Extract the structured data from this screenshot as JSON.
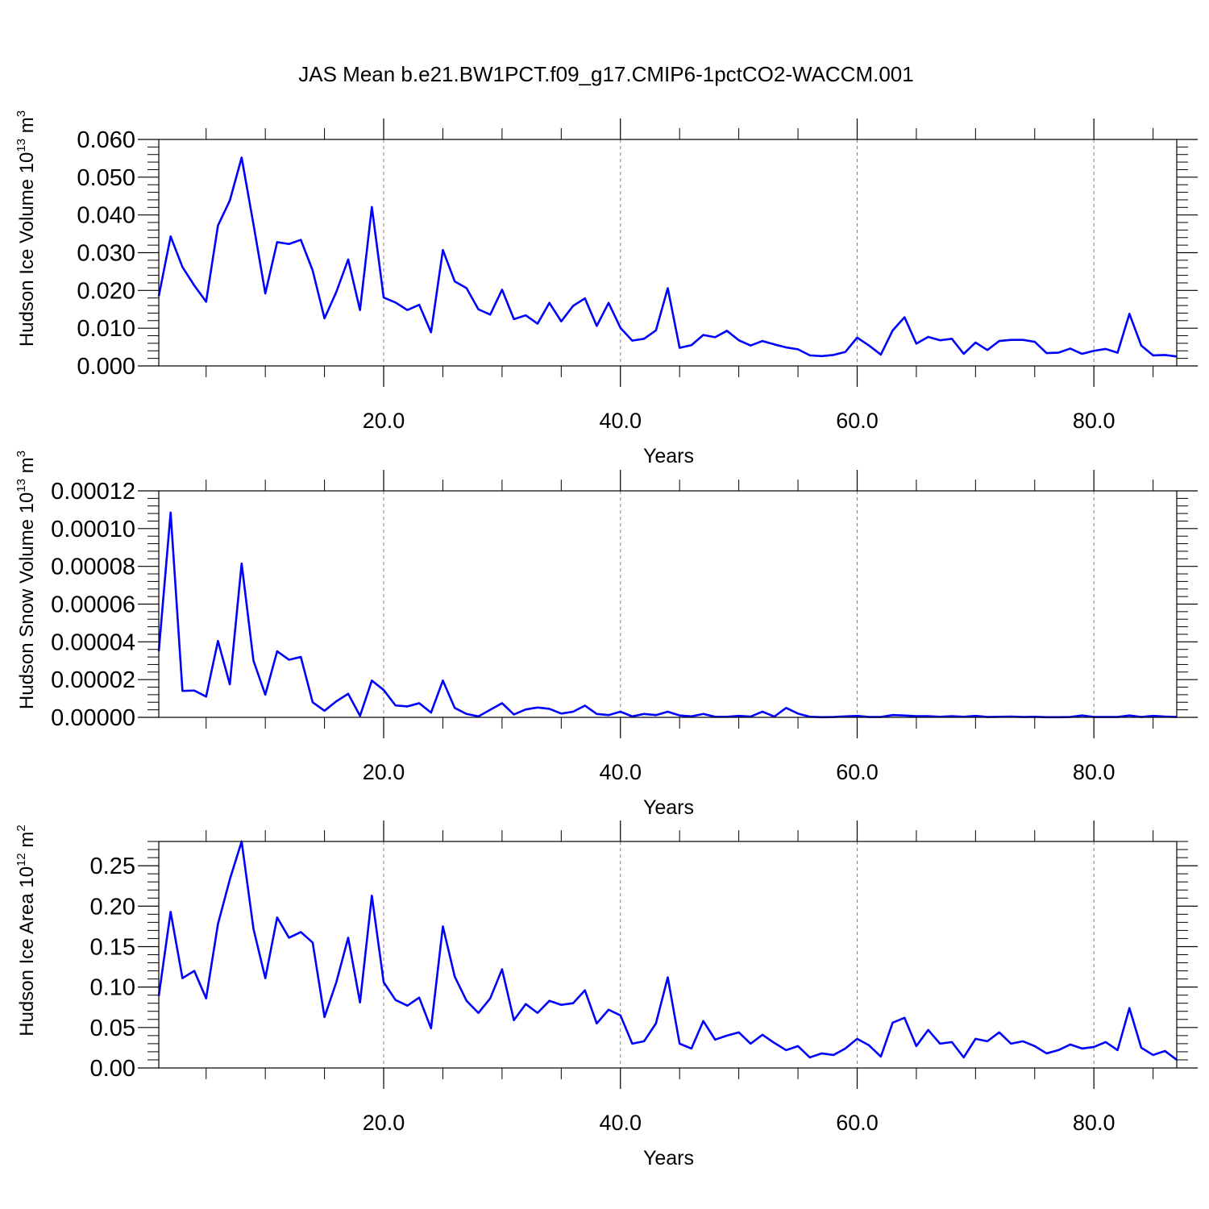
{
  "title": "JAS Mean b.e21.BW1PCT.f09_g17.CMIP6-1pctCO2-WACCM.001",
  "colors": {
    "series": "#0000ff",
    "axis": "#000000",
    "grid": "#808080"
  },
  "chart_data": [
    {
      "type": "line",
      "xlabel": "Years",
      "ylabel": {
        "base": "Hudson Ice Volume 10",
        "sup": "13",
        "unit": " m",
        "unit_sup": "3"
      },
      "xlim": [
        1,
        87
      ],
      "ylim": [
        0,
        0.06
      ],
      "yticks": [
        0,
        0.01,
        0.02,
        0.03,
        0.04,
        0.05,
        0.06
      ],
      "ytick_labels": [
        "0.000",
        "0.010",
        "0.020",
        "0.030",
        "0.040",
        "0.050",
        "0.060"
      ],
      "xticks": [
        20,
        40,
        60,
        80
      ],
      "xtick_labels": [
        "20.0",
        "40.0",
        "60.0",
        "80.0"
      ],
      "grid": "x dashed",
      "x_start": 1,
      "values": [
        0.0185,
        0.0343,
        0.0262,
        0.0213,
        0.017,
        0.0372,
        0.0438,
        0.0552,
        0.0375,
        0.0192,
        0.0328,
        0.0323,
        0.0334,
        0.0253,
        0.0126,
        0.0196,
        0.0282,
        0.0148,
        0.0421,
        0.0181,
        0.0168,
        0.0148,
        0.0162,
        0.0089,
        0.0307,
        0.0224,
        0.0206,
        0.015,
        0.0136,
        0.0202,
        0.0124,
        0.0134,
        0.0112,
        0.0167,
        0.0118,
        0.0159,
        0.0179,
        0.0106,
        0.0167,
        0.0101,
        0.0067,
        0.0072,
        0.0094,
        0.0206,
        0.0048,
        0.0055,
        0.0082,
        0.0076,
        0.0093,
        0.0068,
        0.0054,
        0.0066,
        0.0057,
        0.0049,
        0.0044,
        0.0028,
        0.0026,
        0.0029,
        0.0037,
        0.0075,
        0.0054,
        0.003,
        0.0094,
        0.0129,
        0.0059,
        0.0077,
        0.0068,
        0.0072,
        0.0032,
        0.0062,
        0.0042,
        0.0066,
        0.0069,
        0.0069,
        0.0064,
        0.0034,
        0.0035,
        0.0046,
        0.0032,
        0.004,
        0.0045,
        0.0035,
        0.0138,
        0.0054,
        0.0028,
        0.0029,
        0.0025
      ]
    },
    {
      "type": "line",
      "xlabel": "Years",
      "ylabel": {
        "base": "Hudson Snow Volume 10",
        "sup": "13",
        "unit": " m",
        "unit_sup": "3"
      },
      "xlim": [
        1,
        87
      ],
      "ylim": [
        0,
        0.00012
      ],
      "yticks": [
        0,
        2e-05,
        4e-05,
        6e-05,
        8e-05,
        0.0001,
        0.00012
      ],
      "ytick_labels": [
        "0.00000",
        "0.00002",
        "0.00004",
        "0.00006",
        "0.00008",
        "0.00010",
        "0.00012"
      ],
      "xticks": [
        20,
        40,
        60,
        80
      ],
      "xtick_labels": [
        "20.0",
        "40.0",
        "60.0",
        "80.0"
      ],
      "grid": "x dashed",
      "x_start": 1,
      "values": [
        3.5e-05,
        0.0001085,
        1.4e-05,
        1.42e-05,
        1.1e-05,
        4.05e-05,
        1.75e-05,
        8.15e-05,
        3e-05,
        1.2e-05,
        3.5e-05,
        3.05e-05,
        3.2e-05,
        8e-06,
        3.5e-06,
        8.5e-06,
        1.25e-05,
        8e-07,
        1.95e-05,
        1.45e-05,
        6.3e-06,
        5.8e-06,
        7.5e-06,
        2.5e-06,
        1.95e-05,
        5e-06,
        1.8e-06,
        5e-07,
        4e-06,
        7.5e-06,
        1.5e-06,
        4.2e-06,
        5.2e-06,
        4.5e-06,
        2e-06,
        3e-06,
        6.2e-06,
        1.8e-06,
        1.2e-06,
        3e-06,
        5e-07,
        1.8e-06,
        1.2e-06,
        3e-06,
        1e-06,
        5e-07,
        1.8e-06,
        3e-07,
        3e-07,
        8e-07,
        4e-07,
        3e-06,
        4e-07,
        5e-06,
        2e-06,
        3e-07,
        1e-07,
        2e-07,
        5e-07,
        8e-07,
        2e-07,
        2e-07,
        1.2e-06,
        1e-06,
        6e-07,
        6e-07,
        3e-07,
        6e-07,
        3e-07,
        8e-07,
        2e-07,
        3e-07,
        4e-07,
        2e-07,
        3e-07,
        1e-07,
        1e-07,
        2e-07,
        1e-06,
        2e-07,
        2e-07,
        2e-07,
        1e-06,
        2e-07,
        8e-07,
        4e-07,
        2e-07
      ]
    },
    {
      "type": "line",
      "xlabel": "Years",
      "ylabel": {
        "base": "Hudson Ice Area 10",
        "sup": "12",
        "unit": " m",
        "unit_sup": "2"
      },
      "xlim": [
        1,
        87
      ],
      "ylim": [
        0,
        0.28
      ],
      "yticks": [
        0,
        0.05,
        0.1,
        0.15,
        0.2,
        0.25
      ],
      "ytick_labels": [
        "0.00",
        "0.05",
        "0.10",
        "0.15",
        "0.20",
        "0.25"
      ],
      "xticks": [
        20,
        40,
        60,
        80
      ],
      "xtick_labels": [
        "20.0",
        "40.0",
        "60.0",
        "80.0"
      ],
      "grid": "x dashed",
      "x_start": 1,
      "values": [
        0.089,
        0.193,
        0.111,
        0.12,
        0.086,
        0.178,
        0.233,
        0.28,
        0.172,
        0.111,
        0.186,
        0.161,
        0.168,
        0.155,
        0.063,
        0.106,
        0.161,
        0.081,
        0.213,
        0.106,
        0.084,
        0.077,
        0.087,
        0.049,
        0.175,
        0.113,
        0.083,
        0.068,
        0.086,
        0.122,
        0.059,
        0.079,
        0.068,
        0.083,
        0.078,
        0.08,
        0.096,
        0.055,
        0.072,
        0.065,
        0.03,
        0.033,
        0.055,
        0.112,
        0.03,
        0.024,
        0.058,
        0.035,
        0.04,
        0.044,
        0.03,
        0.041,
        0.031,
        0.022,
        0.027,
        0.013,
        0.018,
        0.016,
        0.024,
        0.036,
        0.028,
        0.014,
        0.056,
        0.062,
        0.027,
        0.047,
        0.03,
        0.032,
        0.013,
        0.036,
        0.033,
        0.044,
        0.03,
        0.033,
        0.027,
        0.018,
        0.022,
        0.029,
        0.024,
        0.026,
        0.032,
        0.022,
        0.074,
        0.025,
        0.016,
        0.021,
        0.01
      ]
    }
  ]
}
